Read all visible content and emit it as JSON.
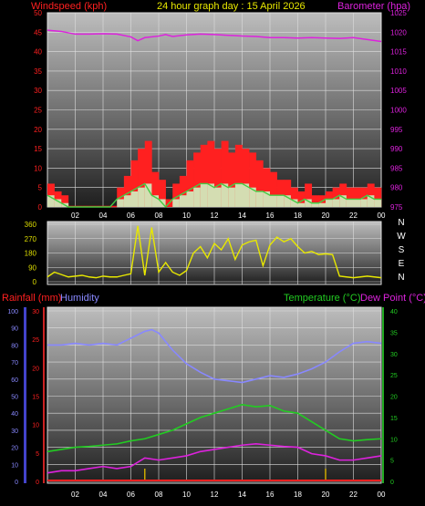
{
  "header": {
    "wind_label": "Windspeed (kph)",
    "title": "24 hour graph day : 15 April 2026",
    "baro_label": "Barometer (hpa)",
    "rain_label": "Rainfall (mm)",
    "humidity_label": "Humidity",
    "temp_label": "Temperature (°C)",
    "dew_label": "Dew Point (°C)"
  },
  "colors": {
    "wind": "#ff2020",
    "gust_dark": "#dd0000",
    "wind_avg": "#44cc44",
    "wind_light": "#ccffcc",
    "barometer": "#dd22dd",
    "direction": "#e8e800",
    "temperature": "#22cc22",
    "dewpoint": "#dd22dd",
    "humidity": "#8888ff",
    "rain": "#ff2020",
    "rain_tick": "#ccaa00",
    "axis_wind": "#ff2020",
    "axis_baro": "#dd22dd",
    "axis_temp": "#22cc22",
    "axis_hum": "#8888ff"
  },
  "chart_data": [
    {
      "type": "area",
      "title": "24 hour graph day : 15 April 2026",
      "xticks": [
        "02",
        "04",
        "06",
        "08",
        "10",
        "12",
        "14",
        "16",
        "18",
        "20",
        "22",
        "00"
      ],
      "left_axis": {
        "label": "Windspeed (kph)",
        "ylim": [
          0,
          50
        ],
        "ticks": [
          "0",
          "5",
          "10",
          "15",
          "20",
          "25",
          "30",
          "35",
          "40",
          "45",
          "50"
        ]
      },
      "right_axis": {
        "label": "Barometer (hpa)",
        "ylim": [
          975,
          1025
        ],
        "ticks": [
          "975",
          "980",
          "985",
          "990",
          "995",
          "1000",
          "1005",
          "1010",
          "1015",
          "1020",
          "1025"
        ]
      },
      "series": [
        {
          "name": "Windspeed (kph)",
          "kind": "gust",
          "x": [
            0,
            0.5,
            1,
            1.5,
            2,
            2.5,
            3,
            3.5,
            4,
            4.5,
            5,
            5.5,
            6,
            6.5,
            7,
            7.5,
            8,
            8.5,
            9,
            9.5,
            10,
            10.5,
            11,
            11.5,
            12,
            12.5,
            13,
            13.5,
            14,
            14.5,
            15,
            15.5,
            16,
            16.5,
            17,
            17.5,
            18,
            18.5,
            19,
            19.5,
            20,
            20.5,
            21,
            21.5,
            22,
            22.5,
            23,
            23.5,
            24
          ],
          "values": [
            6,
            4,
            3,
            0,
            0,
            0,
            0,
            0,
            0,
            0,
            5,
            8,
            12,
            15,
            17,
            9,
            7,
            2,
            6,
            8,
            12,
            14,
            16,
            17,
            15,
            17,
            14,
            16,
            15,
            14,
            12,
            10,
            9,
            7,
            7,
            5,
            4,
            6,
            3,
            3,
            4,
            5,
            6,
            5,
            5,
            5,
            6,
            5,
            5
          ]
        },
        {
          "name": "",
          "kind": "average",
          "x": [
            0,
            0.5,
            1,
            1.5,
            2,
            2.5,
            3,
            3.5,
            4,
            4.5,
            5,
            5.5,
            6,
            6.5,
            7,
            7.5,
            8,
            8.5,
            9,
            9.5,
            10,
            10.5,
            11,
            11.5,
            12,
            12.5,
            13,
            13.5,
            14,
            14.5,
            15,
            15.5,
            16,
            16.5,
            17,
            17.5,
            18,
            18.5,
            19,
            19.5,
            20,
            20.5,
            21,
            21.5,
            22,
            22.5,
            23,
            23.5,
            24
          ],
          "values": [
            3,
            2,
            1,
            0,
            0,
            0,
            0,
            0,
            0,
            0,
            2,
            3,
            4,
            5,
            6,
            3,
            2,
            0,
            2,
            3,
            4,
            5,
            6,
            6,
            5,
            6,
            5,
            6,
            6,
            5,
            4,
            4,
            3,
            3,
            3,
            2,
            1,
            2,
            1,
            1,
            2,
            2,
            3,
            2,
            2,
            2,
            3,
            2,
            2
          ]
        },
        {
          "name": "Barometer (hpa)",
          "kind": "line",
          "x": [
            0,
            1,
            2,
            3,
            4,
            5,
            6,
            6.5,
            7,
            8,
            8.5,
            9,
            10,
            11,
            12,
            13,
            14,
            15,
            16,
            17,
            18,
            19,
            20,
            21,
            22,
            23,
            24
          ],
          "values": [
            1020.5,
            1020.2,
            1019.5,
            1019.5,
            1019.6,
            1019.5,
            1018.8,
            1017.8,
            1018.6,
            1019.0,
            1019.4,
            1018.9,
            1019.3,
            1019.5,
            1019.4,
            1019.2,
            1019.0,
            1018.9,
            1018.6,
            1018.6,
            1018.5,
            1018.6,
            1018.5,
            1018.4,
            1018.6,
            1018.1,
            1017.6
          ]
        }
      ]
    },
    {
      "type": "line",
      "title": "",
      "xticks": [],
      "left_axis": {
        "label": "",
        "ylim": [
          0,
          360
        ],
        "ticks": [
          "0",
          "90",
          "180",
          "270",
          "360"
        ]
      },
      "right_axis": {
        "label": "",
        "ticks": [
          "N",
          "W",
          "S",
          "E",
          "N"
        ]
      },
      "series": [
        {
          "name": "",
          "x": [
            0,
            0.5,
            1,
            1.5,
            2,
            2.5,
            3,
            3.5,
            4,
            4.5,
            5,
            5.5,
            6,
            6.5,
            7,
            7.5,
            8,
            8.5,
            9,
            9.5,
            10,
            10.5,
            11,
            11.5,
            12,
            12.5,
            13,
            13.5,
            14,
            14.5,
            15,
            15.5,
            16,
            16.5,
            17,
            17.5,
            18,
            18.5,
            19,
            19.5,
            20,
            20.5,
            21,
            21.5,
            22,
            22.5,
            23,
            23.5,
            24
          ],
          "values": [
            30,
            60,
            45,
            30,
            35,
            40,
            30,
            25,
            35,
            30,
            30,
            40,
            50,
            350,
            40,
            340,
            60,
            120,
            60,
            40,
            70,
            180,
            220,
            150,
            240,
            200,
            270,
            140,
            230,
            250,
            260,
            100,
            230,
            280,
            250,
            270,
            220,
            180,
            190,
            170,
            175,
            170,
            35,
            30,
            25,
            30,
            35,
            30,
            25
          ]
        }
      ]
    },
    {
      "type": "line",
      "title": "",
      "xticks": [
        "02",
        "04",
        "06",
        "08",
        "10",
        "12",
        "14",
        "16",
        "18",
        "20",
        "22",
        "00"
      ],
      "left_axis_humidity": {
        "label": "Humidity",
        "ylim": [
          0,
          100
        ],
        "ticks": [
          "0",
          "10",
          "20",
          "30",
          "40",
          "50",
          "60",
          "70",
          "80",
          "90",
          "100"
        ]
      },
      "left_axis_rain": {
        "label": "Rainfall (mm)",
        "ylim": [
          0,
          30
        ],
        "ticks": [
          "0",
          "5",
          "10",
          "15",
          "20",
          "25",
          "30"
        ]
      },
      "right_axis": {
        "label": "Temperature (°C)",
        "ylim": [
          0,
          40
        ],
        "ticks": [
          "0",
          "5",
          "10",
          "15",
          "20",
          "25",
          "30",
          "35",
          "40"
        ]
      },
      "series": [
        {
          "name": "Humidity",
          "axis": "humidity",
          "x": [
            0,
            1,
            2,
            3,
            4,
            5,
            6,
            7,
            7.5,
            8,
            9,
            10,
            11,
            12,
            13,
            14,
            15,
            16,
            17,
            18,
            19,
            20,
            21,
            22,
            23,
            24
          ],
          "values": [
            80,
            80,
            81,
            80,
            81,
            80,
            84,
            88,
            89,
            87,
            77,
            69,
            64,
            60,
            59,
            58,
            60,
            62,
            61,
            63,
            66,
            70,
            76,
            81,
            82,
            81
          ]
        },
        {
          "name": "Temperature (°C)",
          "axis": "temp",
          "x": [
            0,
            1,
            2,
            3,
            4,
            5,
            6,
            7,
            8,
            9,
            10,
            11,
            12,
            13,
            14,
            15,
            16,
            17,
            18,
            19,
            20,
            21,
            22,
            23,
            24
          ],
          "values": [
            7,
            7.5,
            8,
            8.2,
            8.5,
            8.8,
            9.5,
            10,
            11,
            12,
            13.5,
            15,
            16,
            17,
            18,
            17.5,
            17.8,
            16.5,
            16,
            14,
            12,
            10,
            9.5,
            9.8,
            10
          ]
        },
        {
          "name": "Dew Point (°C)",
          "axis": "temp",
          "x": [
            0,
            1,
            2,
            3,
            4,
            5,
            6,
            7,
            8,
            9,
            10,
            11,
            12,
            13,
            14,
            15,
            16,
            17,
            18,
            19,
            20,
            21,
            22,
            23,
            24
          ],
          "values": [
            2,
            2.5,
            2.5,
            3,
            3.5,
            3,
            3.5,
            5.5,
            5,
            5.5,
            6,
            7,
            7.5,
            8,
            8.5,
            8.8,
            8.5,
            8.2,
            8,
            6.5,
            6,
            5,
            5,
            5.5,
            6
          ]
        },
        {
          "name": "Rainfall (mm)",
          "axis": "rain",
          "x": [
            0,
            24
          ],
          "values": [
            0,
            0
          ]
        }
      ]
    }
  ]
}
